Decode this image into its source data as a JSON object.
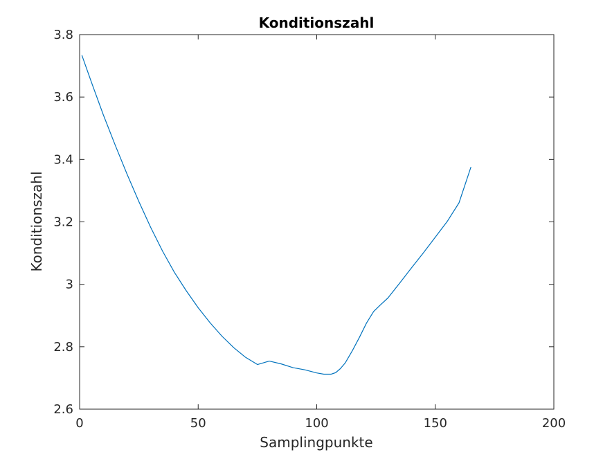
{
  "chart_data": {
    "type": "line",
    "title": "Konditionszahl",
    "xlabel": "Samplingpunkte",
    "ylabel": "Konditionszahl",
    "xlim": [
      0,
      200
    ],
    "ylim": [
      2.6,
      3.8
    ],
    "xticks": [
      0,
      50,
      100,
      150,
      200
    ],
    "xtick_labels": [
      "0",
      "50",
      "100",
      "150",
      "200"
    ],
    "yticks": [
      2.6,
      2.8,
      3.0,
      3.2,
      3.4,
      3.6,
      3.8
    ],
    "ytick_labels": [
      "2.6",
      "2.8",
      "3",
      "3.2",
      "3.4",
      "3.6",
      "3.8"
    ],
    "grid": false,
    "line_color": "#0072bd",
    "series": [
      {
        "x": [
          1,
          5,
          10,
          15,
          20,
          25,
          30,
          35,
          40,
          45,
          50,
          55,
          60,
          65,
          70,
          75,
          80,
          85,
          90,
          95,
          100,
          103,
          106,
          108,
          110,
          112,
          115,
          118,
          121,
          124,
          127,
          130,
          135,
          140,
          145,
          150,
          155,
          160,
          165
        ],
        "y": [
          3.733,
          3.647,
          3.543,
          3.446,
          3.353,
          3.265,
          3.182,
          3.106,
          3.038,
          2.979,
          2.925,
          2.877,
          2.834,
          2.797,
          2.766,
          2.743,
          2.754,
          2.745,
          2.733,
          2.726,
          2.716,
          2.712,
          2.712,
          2.717,
          2.73,
          2.748,
          2.787,
          2.83,
          2.876,
          2.913,
          2.935,
          2.956,
          3.004,
          3.053,
          3.101,
          3.151,
          3.201,
          3.261,
          3.375
        ]
      }
    ]
  }
}
